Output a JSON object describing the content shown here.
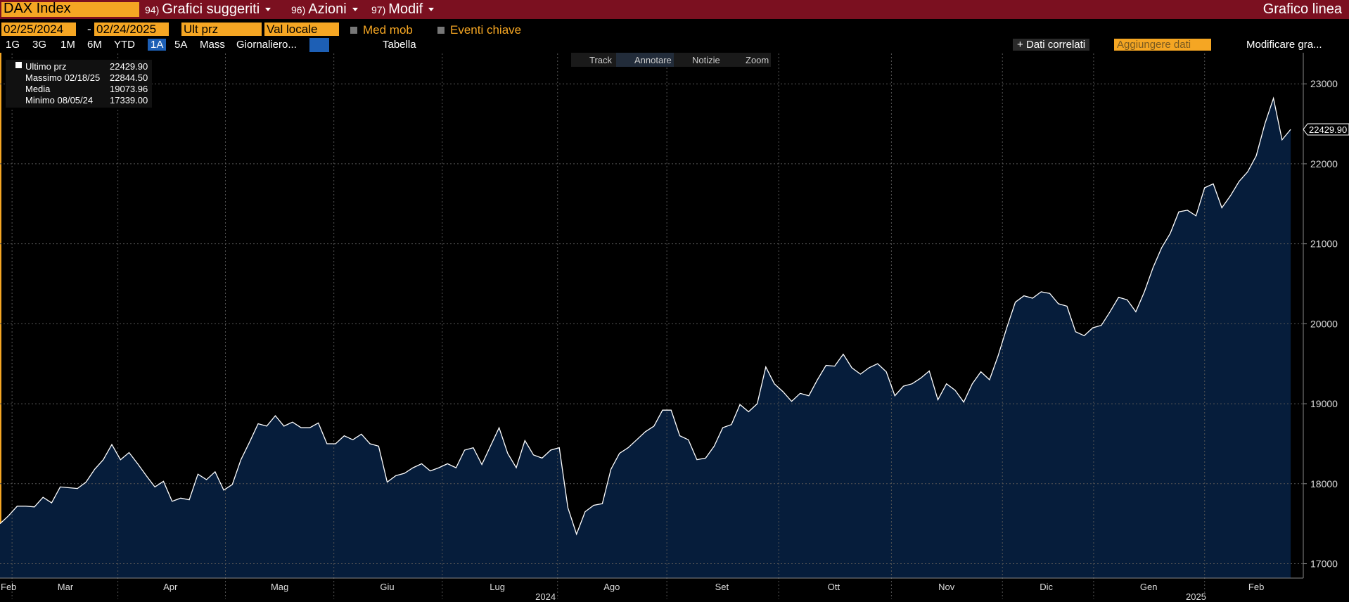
{
  "toolbar": {
    "security": "DAX Index",
    "menus": [
      {
        "num": "94)",
        "label": "Grafici suggeriti"
      },
      {
        "num": "96)",
        "label": "Azioni"
      },
      {
        "num": "97)",
        "label": "Modif"
      }
    ],
    "chart_kind": "Grafico linea"
  },
  "controls": {
    "start": "02/25/2024",
    "dash": "-",
    "end": "02/24/2025",
    "field": "Ult prz",
    "currency": "Val locale",
    "checks": [
      "Med mob",
      "Eventi chiave"
    ],
    "periods": [
      "1G",
      "3G",
      "1M",
      "6M",
      "YTD",
      "1A",
      "5A",
      "Mass"
    ],
    "frequency": "Giornaliero...",
    "table": "Tabella",
    "related": "Dati correlati",
    "add": "Aggiungere dati",
    "edit": "Modificare gra..."
  },
  "tools": [
    "Track",
    "Annotare",
    "Notizie",
    "Zoom"
  ],
  "legend": [
    {
      "name": "Ultimo prz",
      "value": "22429.90"
    },
    {
      "name": "Massimo 02/18/25",
      "value": "22844.50"
    },
    {
      "name": "Media",
      "value": "19073.96"
    },
    {
      "name": "Minimo 08/05/24",
      "value": "17339.00"
    }
  ],
  "chart_data": {
    "type": "area",
    "line_color": "#ffffff",
    "fill_color": "#061d3b",
    "values": [
      17500,
      17600,
      17720,
      17720,
      17710,
      17830,
      17760,
      17960,
      17950,
      17940,
      18020,
      18180,
      18300,
      18490,
      18300,
      18390,
      18250,
      18100,
      17960,
      18030,
      17780,
      17820,
      17800,
      18120,
      18050,
      18150,
      17920,
      17990,
      18300,
      18520,
      18750,
      18720,
      18850,
      18720,
      18770,
      18700,
      18700,
      18760,
      18500,
      18500,
      18600,
      18550,
      18620,
      18500,
      18470,
      18020,
      18100,
      18130,
      18200,
      18250,
      18160,
      18200,
      18250,
      18200,
      18420,
      18450,
      18240,
      18470,
      18700,
      18380,
      18200,
      18540,
      18360,
      18320,
      18420,
      18450,
      17700,
      17370,
      17650,
      17730,
      17750,
      18180,
      18380,
      18450,
      18550,
      18650,
      18720,
      18920,
      18920,
      18600,
      18550,
      18300,
      18320,
      18470,
      18700,
      18740,
      18990,
      18900,
      19000,
      19460,
      19250,
      19150,
      19030,
      19130,
      19100,
      19300,
      19480,
      19470,
      19620,
      19450,
      19370,
      19450,
      19500,
      19400,
      19100,
      19220,
      19250,
      19320,
      19410,
      19050,
      19250,
      19170,
      19020,
      19250,
      19400,
      19300,
      19600,
      19950,
      20270,
      20350,
      20320,
      20400,
      20380,
      20250,
      20220,
      19900,
      19850,
      19950,
      19980,
      20150,
      20330,
      20300,
      20150,
      20400,
      20700,
      20950,
      21130,
      21400,
      21420,
      21350,
      21700,
      21750,
      21450,
      21600,
      21780,
      21900,
      22100,
      22500,
      22820,
      22300,
      22429.9
    ],
    "last_label": "22429.90",
    "xlim": [
      0,
      154
    ],
    "xticks": [
      {
        "value": 1,
        "label": "Feb"
      },
      {
        "value": 7.6,
        "label": "Mar"
      },
      {
        "value": 19.8,
        "label": "Apr"
      },
      {
        "value": 32.5,
        "label": "Mag"
      },
      {
        "value": 45,
        "label": "Giu"
      },
      {
        "value": 57.8,
        "label": "Lug"
      },
      {
        "value": 71.1,
        "label": "Ago"
      },
      {
        "value": 83.9,
        "label": "Set"
      },
      {
        "value": 96.9,
        "label": "Ott"
      },
      {
        "value": 110,
        "label": "Nov"
      },
      {
        "value": 121.6,
        "label": "Dic"
      },
      {
        "value": 133.5,
        "label": "Gen"
      },
      {
        "value": 146,
        "label": "Feb"
      }
    ],
    "xgrid": [
      1.4,
      13.7,
      26.2,
      38.8,
      51.4,
      64.8,
      77.5,
      90.5,
      103.6,
      116.5,
      127.1,
      140
    ],
    "year_ticks": [
      {
        "value": 63.4,
        "label": "2024"
      },
      {
        "value": 139,
        "label": "2025"
      }
    ],
    "ylim": [
      16820,
      23380
    ],
    "yticks": [
      17000,
      18000,
      19000,
      20000,
      21000,
      22000,
      23000
    ],
    "grid": true
  }
}
